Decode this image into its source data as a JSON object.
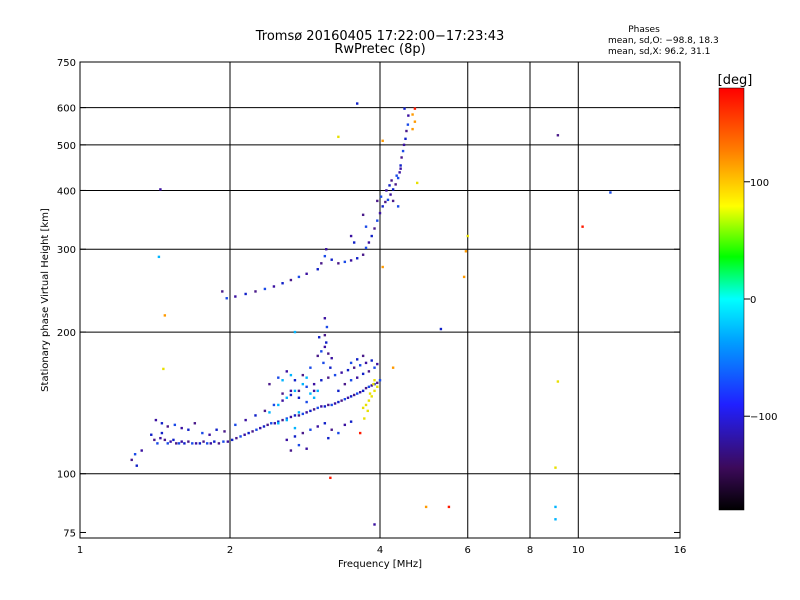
{
  "chart_data": {
    "type": "scatter",
    "title": "Tromsø 20160405 17:22:00−17:23:43",
    "subtitle": "RwPretec (8p)",
    "stats": {
      "heading": "Phases",
      "line1": "mean, sd,O: −98.8, 18.3",
      "line2": "mean, sd,X:  96.2, 31.1"
    },
    "xlabel": "Frequency [MHz]",
    "ylabel": "Stationary phase Virtual Height [km]",
    "xscale": "log",
    "yscale": "log",
    "xlim": [
      1,
      16
    ],
    "ylim": [
      73,
      750
    ],
    "x_ticks": [
      1,
      2,
      4,
      6,
      8,
      10,
      16
    ],
    "x_tick_labels": [
      "1",
      "2",
      "4",
      "6",
      "8",
      "10",
      "16"
    ],
    "x_grid": [
      2,
      4,
      6,
      8,
      10
    ],
    "y_ticks": [
      75,
      100,
      200,
      300,
      400,
      500,
      600,
      750
    ],
    "y_tick_labels": [
      "75",
      "100",
      "200",
      "300",
      "400",
      "500",
      "600",
      "750"
    ],
    "y_grid": [
      100,
      200,
      300,
      400,
      500,
      600
    ],
    "grid": true,
    "colorbar": {
      "label": "[deg]",
      "min": -180,
      "max": 180,
      "ticks": [
        100,
        0,
        -100
      ],
      "tick_labels": [
        "100",
        "0",
        "−100"
      ],
      "colors": [
        "#000000",
        "#3c0a5a",
        "#2020ff",
        "#00a0ff",
        "#00ffff",
        "#00ff00",
        "#ffff00",
        "#ff8000",
        "#ff0000"
      ]
    },
    "series": [
      {
        "points": [
          [
            1.27,
            107
          ],
          [
            1.29,
            110
          ],
          [
            1.33,
            112
          ],
          [
            1.39,
            121
          ],
          [
            1.41,
            118
          ],
          [
            1.43,
            116
          ],
          [
            1.45,
            119
          ],
          [
            1.46,
            122
          ],
          [
            1.48,
            118
          ],
          [
            1.5,
            116
          ],
          [
            1.52,
            117
          ],
          [
            1.54,
            118
          ],
          [
            1.56,
            116
          ],
          [
            1.58,
            116
          ],
          [
            1.6,
            117
          ],
          [
            1.62,
            116
          ],
          [
            1.65,
            117
          ],
          [
            1.68,
            116
          ],
          [
            1.71,
            116
          ],
          [
            1.74,
            116
          ],
          [
            1.77,
            117
          ],
          [
            1.8,
            116
          ],
          [
            1.83,
            116
          ],
          [
            1.86,
            117
          ],
          [
            1.9,
            116
          ],
          [
            1.94,
            117
          ],
          [
            1.98,
            117
          ],
          [
            2.02,
            118
          ],
          [
            2.06,
            119
          ],
          [
            2.1,
            120
          ],
          [
            2.14,
            121
          ],
          [
            2.18,
            122
          ],
          [
            2.22,
            123
          ],
          [
            2.26,
            124
          ],
          [
            2.3,
            125
          ],
          [
            2.34,
            126
          ],
          [
            2.38,
            127
          ],
          [
            2.42,
            128
          ],
          [
            2.46,
            128
          ],
          [
            2.5,
            129
          ],
          [
            2.55,
            130
          ],
          [
            2.6,
            131
          ],
          [
            2.65,
            132
          ],
          [
            2.7,
            133
          ],
          [
            2.75,
            133
          ],
          [
            2.8,
            134
          ],
          [
            2.85,
            135
          ],
          [
            2.9,
            136
          ],
          [
            2.95,
            137
          ],
          [
            3.0,
            138
          ],
          [
            3.05,
            139
          ],
          [
            3.1,
            139
          ],
          [
            3.15,
            140
          ],
          [
            3.2,
            140
          ],
          [
            3.25,
            141
          ],
          [
            3.3,
            142
          ],
          [
            3.35,
            143
          ],
          [
            3.4,
            144
          ],
          [
            3.45,
            145
          ],
          [
            3.5,
            146
          ],
          [
            3.55,
            147
          ],
          [
            3.6,
            148
          ],
          [
            3.65,
            149
          ],
          [
            3.7,
            150
          ],
          [
            3.75,
            152
          ],
          [
            3.8,
            153
          ],
          [
            3.85,
            154
          ],
          [
            3.9,
            155
          ],
          [
            3.95,
            156
          ],
          [
            4.0,
            158
          ],
          [
            1.42,
            130
          ],
          [
            1.46,
            128
          ],
          [
            1.5,
            126
          ],
          [
            1.55,
            127
          ],
          [
            1.6,
            125
          ],
          [
            1.65,
            124
          ],
          [
            1.7,
            128
          ],
          [
            1.76,
            122
          ],
          [
            1.82,
            121
          ],
          [
            1.88,
            124
          ],
          [
            1.95,
            123
          ],
          [
            2.05,
            127
          ],
          [
            2.15,
            130
          ],
          [
            2.25,
            133
          ],
          [
            2.35,
            136
          ],
          [
            2.45,
            140
          ],
          [
            2.55,
            143
          ],
          [
            2.65,
            147
          ],
          [
            2.75,
            150
          ],
          [
            2.85,
            153
          ],
          [
            2.95,
            155
          ],
          [
            3.05,
            158
          ],
          [
            3.15,
            160
          ],
          [
            3.25,
            162
          ],
          [
            3.35,
            164
          ],
          [
            3.45,
            166
          ],
          [
            3.55,
            168
          ],
          [
            3.65,
            170
          ],
          [
            3.75,
            172
          ],
          [
            3.85,
            174
          ],
          [
            3.0,
            178
          ],
          [
            3.05,
            182
          ],
          [
            3.1,
            186
          ],
          [
            3.12,
            190
          ],
          [
            3.15,
            180
          ],
          [
            3.08,
            172
          ],
          [
            3.2,
            176
          ],
          [
            3.18,
            168
          ],
          [
            3.1,
            197
          ],
          [
            3.13,
            205
          ],
          [
            3.1,
            214
          ],
          [
            3.02,
            195
          ],
          [
            2.4,
            155
          ],
          [
            2.5,
            160
          ],
          [
            2.6,
            165
          ],
          [
            2.7,
            158
          ],
          [
            2.8,
            162
          ],
          [
            2.9,
            168
          ],
          [
            2.65,
            150
          ],
          [
            2.75,
            145
          ],
          [
            2.55,
            148
          ],
          [
            2.85,
            142
          ],
          [
            2.95,
            150
          ],
          [
            3.3,
            150
          ],
          [
            3.4,
            155
          ],
          [
            3.5,
            158
          ],
          [
            3.6,
            160
          ],
          [
            3.7,
            163
          ],
          [
            3.8,
            165
          ],
          [
            3.9,
            168
          ],
          [
            3.95,
            171
          ],
          [
            3.6,
            175
          ],
          [
            3.7,
            178
          ],
          [
            3.5,
            172
          ],
          [
            2.6,
            118
          ],
          [
            2.7,
            120
          ],
          [
            2.8,
            122
          ],
          [
            2.9,
            124
          ],
          [
            3.0,
            126
          ],
          [
            3.1,
            128
          ],
          [
            3.2,
            124
          ],
          [
            3.3,
            122
          ],
          [
            3.4,
            127
          ],
          [
            3.5,
            129
          ],
          [
            2.65,
            112
          ],
          [
            2.75,
            115
          ],
          [
            2.85,
            113
          ],
          [
            3.15,
            119
          ],
          [
            1.93,
            244
          ],
          [
            1.97,
            236
          ],
          [
            2.05,
            238
          ],
          [
            2.15,
            241
          ],
          [
            2.25,
            244
          ],
          [
            2.35,
            247
          ],
          [
            2.45,
            250
          ],
          [
            2.55,
            254
          ],
          [
            2.65,
            258
          ],
          [
            2.75,
            262
          ],
          [
            2.85,
            266
          ],
          [
            3.0,
            272
          ],
          [
            3.05,
            280
          ],
          [
            3.1,
            290
          ],
          [
            3.12,
            300
          ],
          [
            3.2,
            285
          ],
          [
            3.3,
            280
          ],
          [
            3.4,
            282
          ],
          [
            3.5,
            284
          ],
          [
            3.6,
            287
          ],
          [
            3.7,
            292
          ],
          [
            3.75,
            302
          ],
          [
            3.8,
            310
          ],
          [
            3.85,
            320
          ],
          [
            3.9,
            332
          ],
          [
            3.95,
            345
          ],
          [
            4.0,
            358
          ],
          [
            4.05,
            370
          ],
          [
            4.1,
            378
          ],
          [
            4.15,
            382
          ],
          [
            4.2,
            392
          ],
          [
            4.25,
            402
          ],
          [
            4.3,
            412
          ],
          [
            4.35,
            425
          ],
          [
            4.38,
            437
          ],
          [
            4.4,
            452
          ],
          [
            4.42,
            470
          ],
          [
            4.45,
            485
          ],
          [
            4.47,
            500
          ],
          [
            4.5,
            515
          ],
          [
            4.52,
            535
          ],
          [
            4.55,
            552
          ],
          [
            4.56,
            577
          ],
          [
            4.48,
            597
          ],
          [
            3.95,
            380
          ],
          [
            4.02,
            388
          ],
          [
            4.12,
            400
          ],
          [
            4.18,
            410
          ],
          [
            4.22,
            420
          ],
          [
            4.32,
            430
          ],
          [
            4.4,
            445
          ],
          [
            3.6,
            612
          ],
          [
            3.7,
            355
          ],
          [
            3.75,
            335
          ],
          [
            3.5,
            320
          ],
          [
            3.55,
            310
          ],
          [
            4.25,
            380
          ],
          [
            4.35,
            370
          ],
          [
            1.45,
            402
          ],
          [
            5.3,
            203
          ],
          [
            9.1,
            524
          ],
          [
            11.6,
            396
          ],
          [
            3.9,
            78
          ],
          [
            1.3,
            104
          ]
        ]
      },
      {
        "points": [
          [
            1.44,
            289
          ],
          [
            2.5,
            140
          ],
          [
            2.6,
            145
          ],
          [
            2.7,
            150
          ],
          [
            2.8,
            155
          ],
          [
            2.9,
            148
          ],
          [
            2.75,
            135
          ],
          [
            2.6,
            130
          ],
          [
            2.5,
            128
          ],
          [
            2.4,
            135
          ],
          [
            2.85,
            160
          ],
          [
            2.65,
            162
          ],
          [
            2.55,
            158
          ],
          [
            2.95,
            145
          ],
          [
            3.0,
            150
          ],
          [
            2.7,
            200
          ],
          [
            9.0,
            85
          ],
          [
            9.0,
            80
          ],
          [
            2.7,
            125
          ]
        ]
      },
      {
        "points": [
          [
            3.7,
            138
          ],
          [
            3.75,
            140
          ],
          [
            3.8,
            143
          ],
          [
            3.85,
            146
          ],
          [
            3.9,
            150
          ],
          [
            3.95,
            153
          ],
          [
            3.78,
            136
          ],
          [
            3.82,
            148
          ],
          [
            3.88,
            155
          ],
          [
            9.0,
            103
          ],
          [
            9.1,
            157
          ],
          [
            6.0,
            320
          ],
          [
            3.3,
            520
          ],
          [
            4.75,
            415
          ],
          [
            1.47,
            167
          ],
          [
            3.72,
            131
          ],
          [
            3.9,
            158
          ]
        ]
      },
      {
        "points": [
          [
            4.65,
            580
          ],
          [
            4.7,
            560
          ],
          [
            4.65,
            540
          ],
          [
            4.05,
            510
          ],
          [
            4.05,
            275
          ],
          [
            5.95,
            297
          ],
          [
            5.9,
            262
          ],
          [
            1.48,
            217
          ],
          [
            4.95,
            85
          ],
          [
            4.25,
            168
          ]
        ]
      },
      {
        "points": [
          [
            4.7,
            597
          ],
          [
            3.18,
            98
          ],
          [
            10.2,
            335
          ],
          [
            5.5,
            85
          ],
          [
            3.65,
            122
          ]
        ]
      }
    ]
  }
}
